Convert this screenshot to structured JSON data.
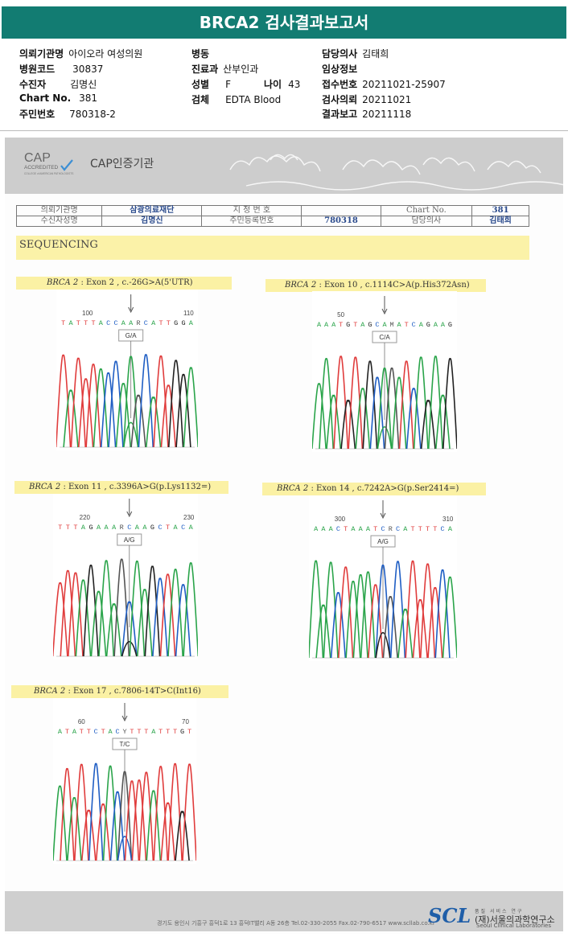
{
  "report": {
    "title": "BRCA2 검사결과보고서"
  },
  "header": {
    "institution_label": "의뢰기관명",
    "institution": "아이오라 여성의원",
    "hospital_code_label": "병원코드",
    "hospital_code": "30837",
    "recipient_label": "수진자",
    "recipient": "김명신",
    "chart_no_label": "Chart No.",
    "chart_no": "381",
    "resident_no_label": "주민번호",
    "resident_no": "780318-2",
    "ward_label": "병동",
    "ward": "",
    "department_label": "진료과",
    "department": "산부인과",
    "sex_label": "성별",
    "sex": "F",
    "age_label": "나이",
    "age": "43",
    "specimen_label": "검체",
    "specimen": "EDTA Blood",
    "doctor_label": "담당의사",
    "doctor": "김태희",
    "clinical_info_label": "임상정보",
    "clinical_info": "",
    "receipt_no_label": "접수번호",
    "receipt_no": "20211021-25907",
    "test_request_label": "검사의뢰",
    "test_request": "20211021",
    "result_report_label": "결과보고",
    "result_report": "20211118"
  },
  "cap": {
    "logo_main": "CAP",
    "logo_sub": "ACCREDITED",
    "logo_small": "COLLEGE of AMERICAN PATHOLOGISTS",
    "label": "CAP인증기관"
  },
  "info_table": {
    "r1": [
      "의뢰기관명",
      "삼광의료재단",
      "지 정 번 호",
      "",
      "Chart No.",
      "381"
    ],
    "r2": [
      "수신자성명",
      "김명신",
      "주민등록번호",
      "780318",
      "담당의사",
      "김태희"
    ]
  },
  "section_title": "SEQUENCING",
  "variants": [
    {
      "gene": "BRCA 2",
      "desc": " : Exon 2 , c.-26G>A(5'UTR)",
      "seq": "TATTTACCAARCATTGGA",
      "pos_left": "100",
      "pos_right": "110",
      "call": "G/A"
    },
    {
      "gene": "BRCA 2",
      "desc": " : Exon 10 , c.1114C>A(p.His372Asn)",
      "seq": "AAATGTAGCAMATCAGAAG",
      "pos_left": "50",
      "pos_right": "",
      "call": "C/A"
    },
    {
      "gene": "BRCA 2",
      "desc": " : Exon 11 , c.3396A>G(p.Lys1132=)",
      "seq": "TTTAGAAARCAAGCTACA",
      "pos_left": "220",
      "pos_right": "230",
      "call": "A/G"
    },
    {
      "gene": "BRCA 2",
      "desc": " : Exon 14 , c.7242A>G(p.Ser2414=)",
      "seq": "AAACTAAATCRCATTTTCA",
      "pos_left": "300",
      "pos_right": "310",
      "call": "A/G"
    },
    {
      "gene": "BRCA 2",
      "desc": " : Exon 17 , c.7806-14T>C(Int16)",
      "seq": "ATATTCTACYTTTATTTGT",
      "pos_left": "60",
      "pos_right": "70",
      "call": "T/C"
    }
  ],
  "footer": {
    "address": "경기도 용인시 기흥구 흥덕1로 13 흥덕IT밸리 A동 26층  Tel.02-330-2055  Fax.02-790-6517  www.scllab.co.kr",
    "logo": "SCL",
    "logo_sub": "품질 서비스 연구",
    "name": "(재)서울의과학연구소",
    "name_en": "Seoul Clinical Laboratories"
  },
  "colors": {
    "title_bar": "#127c72",
    "A": "#2aa44a",
    "C": "#1f5ec4",
    "G": "#222222",
    "T": "#e03c3c",
    "highlight": "#fbf1a4"
  }
}
